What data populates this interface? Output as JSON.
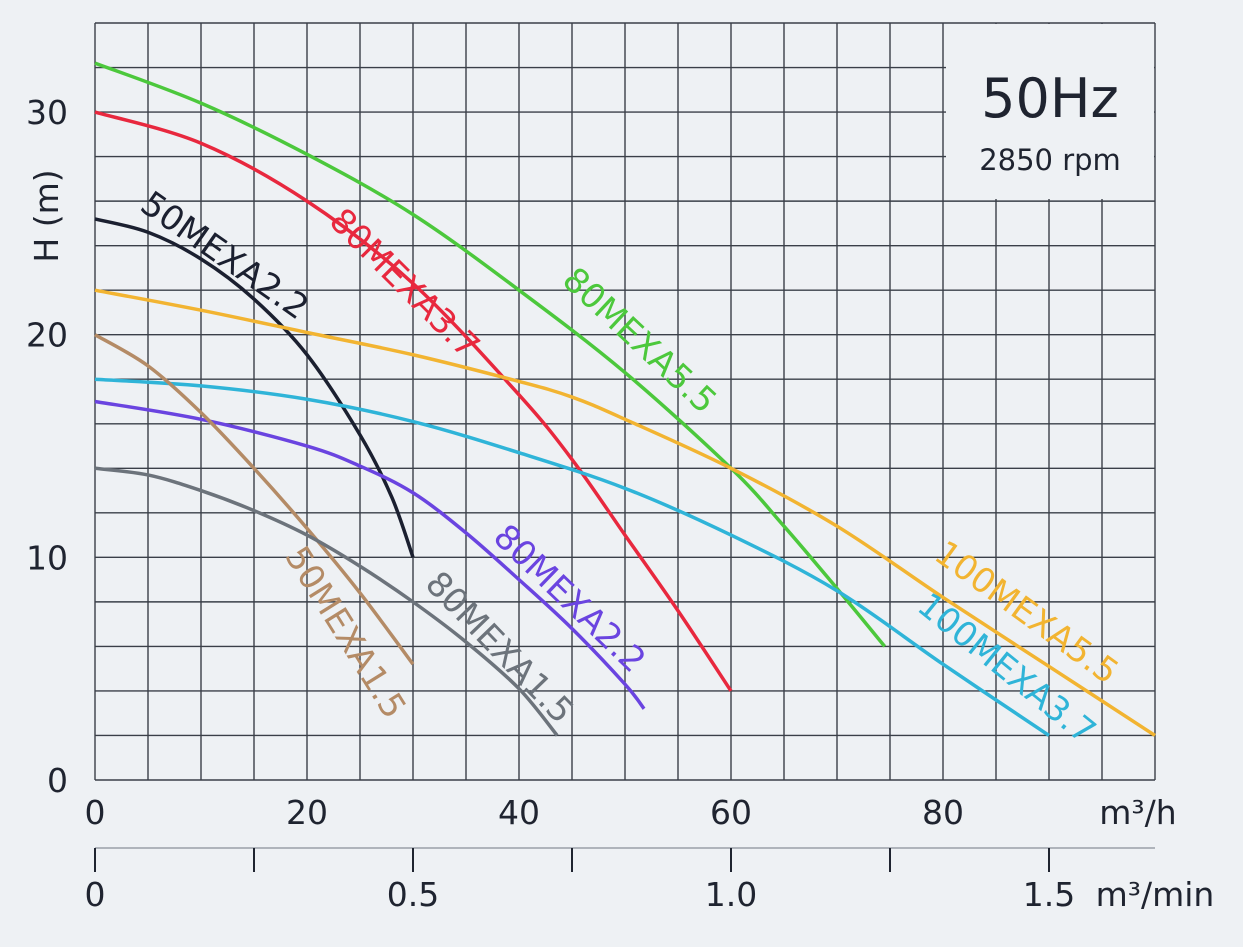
{
  "chart_data": {
    "type": "line",
    "title": "50Hz",
    "subtitle": "2850 rpm",
    "xlabel": "m³/h",
    "ylabel": "H (m)",
    "secondary_xlabel": "m³/min",
    "xlim": [
      0,
      100
    ],
    "ylim": [
      0,
      34
    ],
    "grid": true,
    "x_ticks": [
      "0",
      "20",
      "40",
      "60",
      "80"
    ],
    "x_tick_values": [
      0,
      20,
      40,
      60,
      80
    ],
    "y_ticks": [
      "0",
      "10",
      "20",
      "30"
    ],
    "y_tick_values": [
      0,
      10,
      20,
      30
    ],
    "secondary_x_ticks": [
      "0",
      "0.5",
      "1.0",
      "1.5"
    ],
    "secondary_x_tick_values": [
      0,
      0.5,
      1.0,
      1.5
    ],
    "secondary_x_minor_values": [
      0.25,
      0.75,
      1.25
    ],
    "series": [
      {
        "name": "80MEXA5.5",
        "color": "#4cc83c",
        "x": [
          0,
          10,
          20,
          30,
          40,
          50,
          60,
          65,
          70,
          74.5
        ],
        "y": [
          32.2,
          30.4,
          28.1,
          25.4,
          22.0,
          18.3,
          14.0,
          11.4,
          8.6,
          6.0
        ]
      },
      {
        "name": "80MEXA3.7",
        "color": "#e8283e",
        "x": [
          0,
          10,
          20,
          30,
          40,
          45,
          50,
          55,
          60
        ],
        "y": [
          30.0,
          28.6,
          26.0,
          22.3,
          17.3,
          14.4,
          11.0,
          7.6,
          4.0
        ]
      },
      {
        "name": "50MEXA2.2",
        "color": "#1b2030",
        "x": [
          0,
          5,
          10,
          15,
          20,
          25,
          28,
          30
        ],
        "y": [
          25.2,
          24.6,
          23.4,
          21.6,
          19.1,
          15.5,
          12.7,
          10.0
        ]
      },
      {
        "name": "100MEXA5.5",
        "color": "#f2b431",
        "x": [
          0,
          10,
          20,
          30,
          40,
          45,
          50,
          60,
          70,
          80,
          90,
          100
        ],
        "y": [
          22.0,
          21.1,
          20.1,
          19.1,
          17.9,
          17.2,
          16.2,
          14.0,
          11.4,
          8.2,
          5.1,
          2.0
        ]
      },
      {
        "name": "100MEXA3.7",
        "color": "#2fb4d8",
        "x": [
          0,
          10,
          20,
          30,
          40,
          50,
          60,
          70,
          80,
          90
        ],
        "y": [
          18.0,
          17.7,
          17.1,
          16.1,
          14.7,
          13.1,
          11.0,
          8.5,
          5.2,
          2.0
        ]
      },
      {
        "name": "80MEXA2.2",
        "color": "#6a44e0",
        "x": [
          0,
          10,
          20,
          25,
          30,
          35,
          40,
          45,
          50,
          51.8
        ],
        "y": [
          17.0,
          16.2,
          15.0,
          14.1,
          12.9,
          11.1,
          9.0,
          6.8,
          4.3,
          3.2
        ]
      },
      {
        "name": "50MEXA1.5",
        "color": "#b48b66",
        "x": [
          0,
          5,
          10,
          15,
          20,
          25,
          30
        ],
        "y": [
          20.0,
          18.6,
          16.5,
          14.0,
          11.3,
          8.4,
          5.2
        ]
      },
      {
        "name": "80MEXA1.5",
        "color": "#6c737b",
        "x": [
          0,
          5,
          10,
          15,
          20,
          25,
          30,
          35,
          40,
          43.6
        ],
        "y": [
          14.0,
          13.7,
          13.0,
          12.1,
          11.0,
          9.6,
          8.0,
          6.2,
          4.1,
          2.0
        ]
      }
    ]
  }
}
